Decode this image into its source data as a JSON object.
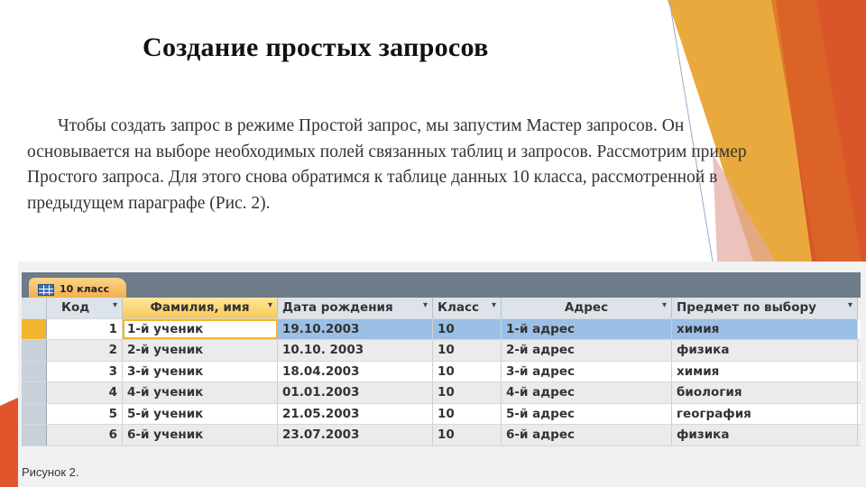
{
  "slide": {
    "title": "Создание простых запросов",
    "paragraph": "Чтобы создать запрос в режиме Простой запрос, мы запустим Мастер запросов. Он основывается на выборе необходимых полей связанных таблиц и запросов. Рассмотрим пример Простого запроса. Для этого снова обратимся к таблице данных 10 класса, рассмотренной в предыдущем параграфе (Рис. 2).",
    "caption": "Рисунок 2."
  },
  "colors": {
    "orange": "#e39a2a",
    "red_orange": "#d9532b",
    "accent_active": "#f2b52f",
    "selected_row": "#9cc0e5"
  },
  "table": {
    "tab_label": "10 класс",
    "tab_icon": "table-icon",
    "columns": [
      "Код",
      "Фамилия, имя",
      "Дата рождения",
      "Класс",
      "Адрес",
      "Предмет по выбору"
    ],
    "rows": [
      [
        "1",
        "1-й ученик",
        "19.10.2003",
        "10",
        "1-й адрес",
        "химия"
      ],
      [
        "2",
        "2-й ученик",
        "10.10. 2003",
        "10",
        "2-й адрес",
        "физика"
      ],
      [
        "3",
        "3-й ученик",
        "18.04.2003",
        "10",
        "3-й адрес",
        "химия"
      ],
      [
        "4",
        "4-й ученик",
        "01.01.2003",
        "10",
        "4-й адрес",
        "биология"
      ],
      [
        "5",
        "5-й ученик",
        "21.05.2003",
        "10",
        "5-й адрес",
        "география"
      ],
      [
        "6",
        "6-й ученик",
        "23.07.2003",
        "10",
        "6-й адрес",
        "физика"
      ]
    ]
  }
}
